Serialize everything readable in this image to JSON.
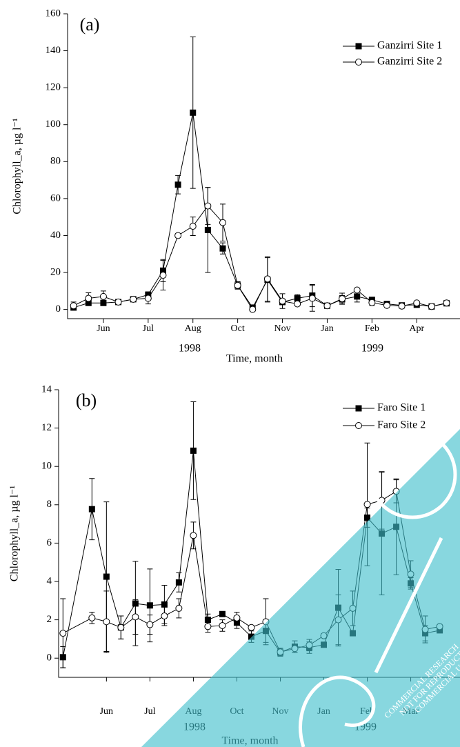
{
  "chart_data": [
    {
      "type": "line",
      "panel_label": "(a)",
      "ylabel": "Chlorophyll_a, µg l⁻¹",
      "xlabel": "Time, month",
      "annotations": [
        "1998",
        "1999"
      ],
      "x": [
        1,
        2,
        3,
        4,
        5,
        6,
        7,
        8,
        9,
        10,
        11,
        12,
        13,
        14,
        15,
        16,
        17,
        18,
        19,
        20,
        21,
        22,
        23,
        24,
        25,
        26
      ],
      "xlim": [
        0.6,
        26.9
      ],
      "xticks": [
        {
          "value": 3,
          "label": "Jun"
        },
        {
          "value": 6,
          "label": "Jul"
        },
        {
          "value": 9,
          "label": "Aug"
        },
        {
          "value": 12,
          "label": "Oct"
        },
        {
          "value": 15,
          "label": "Nov"
        },
        {
          "value": 18,
          "label": "Jan"
        },
        {
          "value": 21,
          "label": "Feb"
        },
        {
          "value": 24,
          "label": "Apr"
        }
      ],
      "ylim": [
        -5,
        160
      ],
      "yticks": [
        0,
        20,
        40,
        60,
        80,
        100,
        120,
        140,
        160
      ],
      "legend": "upper right",
      "series": [
        {
          "name": "Ganzirri Site 1",
          "marker": "square",
          "color": "#000000",
          "values": [
            1,
            3.5,
            3.5,
            4,
            5.5,
            8,
            21,
            67.5,
            106.5,
            43,
            33,
            13,
            1,
            16,
            4,
            6,
            7.5,
            2,
            5.5,
            7,
            5.2,
            3,
            2.2,
            2.5,
            1.6,
            3.3
          ],
          "errors": [
            1,
            1,
            1,
            1,
            1,
            1.5,
            6,
            5,
            41,
            23,
            3,
            2,
            1,
            12,
            1.5,
            2,
            6,
            1,
            2,
            3,
            1,
            1,
            1,
            1,
            1,
            1
          ]
        },
        {
          "name": "Ganzirri Site 2",
          "marker": "circle",
          "color": "#000000",
          "values": [
            2,
            6,
            7,
            4,
            5.5,
            6,
            18.5,
            40,
            45,
            56,
            47,
            13,
            0,
            16.5,
            4.5,
            3,
            6,
            2,
            5.8,
            10.5,
            3.7,
            2.2,
            1.8,
            3.5,
            1.6,
            3.5
          ],
          "errors": [
            2,
            3,
            3,
            1,
            1,
            3,
            8,
            1,
            5,
            10,
            10,
            2,
            1,
            12,
            4,
            1,
            7,
            1,
            3,
            1,
            1.5,
            1,
            1,
            1,
            1,
            1
          ]
        }
      ]
    },
    {
      "type": "line",
      "panel_label": "(b)",
      "ylabel": "Chlorophyll_a, µg l⁻¹",
      "xlabel": "Time, month",
      "annotations": [
        "1998",
        "1999"
      ],
      "x": [
        1,
        3,
        4,
        5,
        6,
        7,
        8,
        9,
        10,
        11,
        12,
        13,
        14,
        15,
        16,
        17,
        18,
        19,
        20,
        21,
        22,
        23,
        24,
        25,
        26,
        27
      ],
      "xlim": [
        0.7,
        28.4
      ],
      "xticks": [
        {
          "value": 4,
          "label": "Jun"
        },
        {
          "value": 7,
          "label": "Jul"
        },
        {
          "value": 10,
          "label": "Aug"
        },
        {
          "value": 13,
          "label": "Oct"
        },
        {
          "value": 16,
          "label": "Nov"
        },
        {
          "value": 19,
          "label": "Jan"
        },
        {
          "value": 22,
          "label": "Feb"
        },
        {
          "value": 25,
          "label": "Mar"
        }
      ],
      "ylim": [
        -1,
        14
      ],
      "yticks": [
        0,
        2,
        4,
        6,
        8,
        10,
        12,
        14
      ],
      "legend": "upper right",
      "series": [
        {
          "name": "Faro Site 1",
          "marker": "square",
          "color": "#000000",
          "values": [
            0.05,
            7.77,
            4.25,
            1.6,
            2.85,
            2.75,
            2.8,
            3.95,
            10.82,
            2.0,
            2.3,
            1.85,
            1.12,
            1.42,
            0.3,
            0.6,
            0.55,
            0.7,
            2.63,
            1.3,
            7.33,
            6.5,
            6.85,
            3.9,
            1.3,
            1.45
          ],
          "errors": [
            0.55,
            1.6,
            3.9,
            0.6,
            2.2,
            1.9,
            1.0,
            0.5,
            2.55,
            0.3,
            0.1,
            0.3,
            0.3,
            0.6,
            0.2,
            0.3,
            0.3,
            0.1,
            2.0,
            0.1,
            0.5,
            3.2,
            2.5,
            0.3,
            0.4,
            0.1
          ]
        },
        {
          "name": "Faro Site 2",
          "marker": "circle",
          "color": "#000000",
          "values": [
            1.3,
            2.1,
            1.9,
            1.6,
            2.15,
            1.75,
            2.2,
            2.6,
            6.4,
            1.65,
            1.7,
            2.1,
            1.6,
            1.9,
            0.32,
            0.5,
            0.68,
            1.17,
            2.0,
            2.6,
            8.02,
            8.23,
            8.7,
            4.38,
            1.5,
            1.65
          ],
          "errors": [
            1.8,
            0.3,
            1.6,
            0.6,
            0.9,
            0.5,
            0.5,
            0.5,
            0.7,
            0.3,
            0.3,
            0.3,
            0.1,
            1.2,
            0.2,
            0.2,
            0.3,
            0.1,
            1.3,
            0.9,
            3.2,
            1.5,
            0.6,
            0.7,
            0.7,
            0.1
          ]
        }
      ]
    }
  ],
  "watermark": [
    "COMMERCIAL RESEARCH",
    "NOT FOR REPRODUCTION",
    "COMMERCIAL USE"
  ]
}
